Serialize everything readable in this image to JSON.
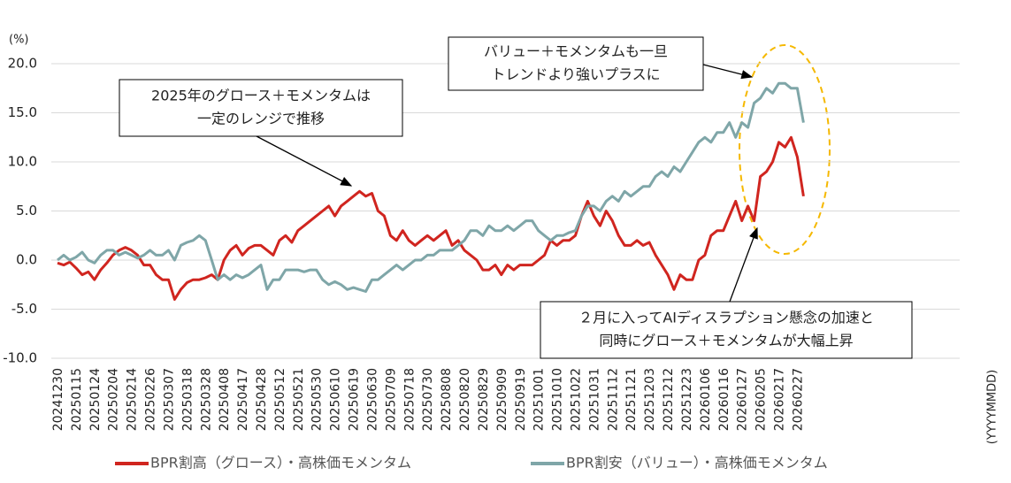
{
  "chart_data": {
    "type": "line",
    "y_axis_label": "(%)",
    "x_axis_label": "(YYYYMMDD)",
    "categories": [
      "20241230",
      null,
      null,
      "20250115",
      null,
      null,
      "20250124",
      null,
      null,
      "20250204",
      null,
      null,
      "20250214",
      null,
      null,
      "20250226",
      null,
      null,
      "20250307",
      null,
      null,
      "20250318",
      null,
      null,
      "20250328",
      null,
      null,
      "20250408",
      null,
      null,
      "20250417",
      null,
      null,
      "20250428",
      null,
      null,
      "20250512",
      null,
      null,
      "20250521",
      null,
      null,
      "20250530",
      null,
      null,
      "20250610",
      null,
      null,
      "20250619",
      null,
      null,
      "20250630",
      null,
      null,
      "20250709",
      null,
      null,
      "20250718",
      null,
      null,
      "20250730",
      null,
      null,
      "20250808",
      null,
      null,
      "20250820",
      null,
      null,
      "20250829",
      null,
      null,
      "20250909",
      null,
      null,
      "20250919",
      null,
      null,
      "20251001",
      null,
      null,
      "20251010",
      null,
      null,
      "20251022",
      null,
      null,
      "20251031",
      null,
      null,
      "20251112",
      null,
      null,
      "20251121",
      null,
      null,
      "20251203",
      null,
      null,
      "20251212",
      null,
      null,
      "20251223",
      null,
      null,
      "20260106",
      null,
      null,
      "20260116",
      null,
      null,
      "20260127",
      null,
      null,
      "20260205",
      null,
      null,
      "20260217",
      null,
      null,
      "20260227",
      null
    ],
    "series": [
      {
        "name": "BPR割高（グロース）・高株価モメンタム",
        "color": "#d0251f",
        "values": [
          -0.3,
          -0.5,
          -0.2,
          -0.8,
          -1.5,
          -1.2,
          -2.0,
          -1.0,
          -0.3,
          0.5,
          1.0,
          1.3,
          1.0,
          0.5,
          -0.5,
          -0.5,
          -1.5,
          -2.0,
          -2.0,
          -4.0,
          -3.0,
          -2.3,
          -2.0,
          -2.0,
          -1.8,
          -1.5,
          -2.0,
          0.0,
          1.0,
          1.5,
          0.5,
          1.2,
          1.5,
          1.5,
          1.0,
          0.5,
          2.0,
          2.5,
          1.8,
          3.0,
          3.5,
          4.0,
          4.5,
          5.0,
          5.5,
          4.5,
          5.5,
          6.0,
          6.5,
          7.0,
          6.5,
          6.8,
          5.0,
          4.5,
          2.5,
          2.0,
          3.0,
          2.0,
          1.5,
          2.0,
          2.5,
          2.0,
          2.5,
          3.0,
          1.5,
          2.0,
          1.0,
          0.5,
          0.0,
          -1.0,
          -1.0,
          -0.5,
          -1.5,
          -0.5,
          -1.0,
          -0.5,
          -0.5,
          -0.5,
          0.0,
          0.5,
          2.0,
          1.5,
          2.0,
          2.0,
          2.5,
          4.5,
          6.0,
          4.5,
          3.5,
          5.0,
          4.0,
          2.5,
          1.5,
          1.5,
          2.0,
          1.5,
          1.8,
          0.5,
          -0.5,
          -1.5,
          -3.0,
          -1.5,
          -2.0,
          -2.0,
          0.0,
          0.5,
          2.5,
          3.0,
          3.0,
          4.5,
          6.0,
          4.0,
          5.5,
          4.0,
          8.5,
          9.0,
          10.0,
          12.0,
          11.5,
          12.5,
          10.5,
          6.5
        ]
      },
      {
        "name": "BPR割安（バリュー）・高株価モメンタム",
        "color": "#7fa6a8",
        "values": [
          0.0,
          0.5,
          0.0,
          0.3,
          0.8,
          0.0,
          -0.3,
          0.5,
          1.0,
          1.0,
          0.5,
          0.8,
          0.5,
          0.2,
          0.5,
          1.0,
          0.5,
          0.5,
          1.0,
          0.0,
          1.5,
          1.8,
          2.0,
          2.5,
          2.0,
          0.0,
          -2.0,
          -1.5,
          -2.0,
          -1.5,
          -1.8,
          -1.5,
          -1.0,
          -0.5,
          -3.0,
          -2.0,
          -2.0,
          -1.0,
          -1.0,
          -1.0,
          -1.2,
          -1.0,
          -1.0,
          -2.0,
          -2.5,
          -2.2,
          -2.5,
          -3.0,
          -2.8,
          -3.0,
          -3.2,
          -2.0,
          -2.0,
          -1.5,
          -1.0,
          -0.5,
          -1.0,
          -0.5,
          0.0,
          0.0,
          0.5,
          0.5,
          1.0,
          1.0,
          1.0,
          1.5,
          2.0,
          3.0,
          3.0,
          2.5,
          3.5,
          3.0,
          3.0,
          3.5,
          3.0,
          3.5,
          4.0,
          4.0,
          3.0,
          2.5,
          2.0,
          2.5,
          2.5,
          2.8,
          3.0,
          4.5,
          5.5,
          5.5,
          5.0,
          6.0,
          6.5,
          6.0,
          7.0,
          6.5,
          7.0,
          7.5,
          7.5,
          8.5,
          9.0,
          8.5,
          9.5,
          9.0,
          10.0,
          11.0,
          12.0,
          12.5,
          12.0,
          13.0,
          13.0,
          14.0,
          12.5,
          14.0,
          13.5,
          16.0,
          16.5,
          17.5,
          17.0,
          18.0,
          18.0,
          17.5,
          17.5,
          14.0
        ]
      }
    ],
    "ylim": [
      -10,
      20
    ],
    "yticks": [
      {
        "value": -10,
        "label": "-10.0"
      },
      {
        "value": -5,
        "label": "-5.0"
      },
      {
        "value": 0,
        "label": "0.0"
      },
      {
        "value": 5,
        "label": "5.0"
      },
      {
        "value": 10,
        "label": "10.0"
      },
      {
        "value": 15,
        "label": "15.0"
      },
      {
        "value": 20,
        "label": "20.0"
      }
    ],
    "grid": true,
    "legend": "bottom",
    "annotations": [
      {
        "lines": [
          "2025年のグロース＋モメンタムは",
          "一定のレンジで推移"
        ]
      },
      {
        "lines": [
          "バリュー＋モメンタムも一旦",
          "トレンドより強いプラスに"
        ]
      },
      {
        "lines": [
          "２月に入ってAIディスラプション懸念の加速と",
          "同時にグロース＋モメンタムが大幅上昇"
        ]
      }
    ]
  }
}
